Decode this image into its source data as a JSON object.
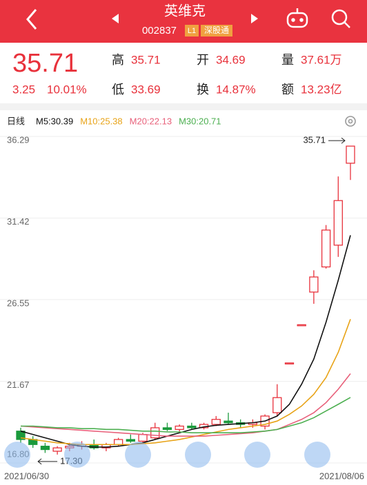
{
  "header": {
    "title": "英维克",
    "code": "002837",
    "level": "L1",
    "tag": "深股通"
  },
  "quote": {
    "price": "35.71",
    "change": "3.25",
    "change_pct": "10.01%",
    "stats": [
      [
        {
          "label": "高",
          "value": "35.71"
        },
        {
          "label": "开",
          "value": "34.69"
        },
        {
          "label": "量",
          "value": "37.61万"
        }
      ],
      [
        {
          "label": "低",
          "value": "33.69"
        },
        {
          "label": "换",
          "value": "14.87%"
        },
        {
          "label": "额",
          "value": "13.23亿"
        }
      ]
    ]
  },
  "chart_data": {
    "type": "candlestick",
    "period": "日线",
    "categories": [
      "2021/06/30",
      null,
      null,
      null,
      null,
      null,
      null,
      null,
      null,
      null,
      null,
      null,
      null,
      null,
      null,
      null,
      null,
      null,
      null,
      null,
      null,
      null,
      null,
      null,
      null,
      null,
      null,
      "2021/08/06"
    ],
    "open": [
      18.7,
      18.2,
      17.8,
      17.5,
      17.7,
      17.8,
      17.9,
      17.7,
      17.9,
      18.2,
      18.1,
      18.3,
      18.9,
      18.8,
      19.0,
      18.9,
      19.1,
      19.3,
      19.2,
      19.1,
      19.0,
      19.8,
      22.77,
      25.05,
      27.0,
      28.5,
      29.8,
      34.69
    ],
    "high": [
      18.9,
      18.4,
      18.0,
      17.8,
      18.0,
      18.1,
      18.2,
      18.0,
      18.3,
      18.5,
      18.6,
      19.2,
      19.2,
      19.1,
      19.2,
      19.2,
      19.6,
      19.8,
      19.4,
      19.4,
      19.7,
      21.5,
      22.77,
      25.05,
      28.3,
      31.0,
      33.9,
      35.71
    ],
    "low": [
      18.0,
      17.7,
      17.4,
      17.3,
      17.5,
      17.6,
      17.6,
      17.5,
      17.8,
      18.0,
      18.0,
      18.2,
      18.7,
      18.6,
      18.8,
      18.8,
      19.0,
      19.1,
      18.9,
      18.9,
      18.8,
      19.6,
      22.77,
      25.05,
      26.3,
      28.4,
      29.1,
      33.69
    ],
    "close": [
      18.2,
      17.9,
      17.6,
      17.7,
      17.8,
      17.9,
      17.7,
      17.9,
      18.2,
      18.1,
      18.5,
      18.9,
      18.8,
      19.0,
      18.9,
      19.1,
      19.4,
      19.2,
      19.1,
      19.2,
      19.6,
      20.7,
      22.77,
      25.05,
      27.9,
      30.7,
      32.46,
      35.71
    ],
    "up_color": "#e8313b",
    "down_color": "#1b9a3c",
    "series": [
      {
        "name": "M5:30.39",
        "color": "#111111",
        "values": [
          18.7,
          18.5,
          18.3,
          18.1,
          17.9,
          17.8,
          17.75,
          17.75,
          17.8,
          17.9,
          18.0,
          18.2,
          18.4,
          18.6,
          18.8,
          18.95,
          19.05,
          19.1,
          19.15,
          19.2,
          19.3,
          19.6,
          20.3,
          21.5,
          23.0,
          25.2,
          27.7,
          30.39
        ]
      },
      {
        "name": "M10:25.38",
        "color": "#e8a317",
        "values": [
          18.3,
          18.2,
          18.1,
          18.0,
          17.95,
          17.9,
          17.9,
          17.9,
          17.9,
          17.9,
          17.95,
          18.0,
          18.1,
          18.2,
          18.35,
          18.5,
          18.65,
          18.8,
          18.9,
          19.0,
          19.1,
          19.3,
          19.7,
          20.2,
          20.9,
          21.9,
          23.4,
          25.38
        ]
      },
      {
        "name": "M20:22.13",
        "color": "#e8607a",
        "values": [
          19.0,
          18.95,
          18.9,
          18.85,
          18.8,
          18.75,
          18.7,
          18.65,
          18.6,
          18.55,
          18.5,
          18.45,
          18.4,
          18.4,
          18.4,
          18.4,
          18.45,
          18.5,
          18.55,
          18.6,
          18.7,
          18.8,
          19.1,
          19.4,
          19.8,
          20.4,
          21.2,
          22.13
        ]
      },
      {
        "name": "M30:20.71",
        "color": "#4caf50",
        "values": [
          19.0,
          19.0,
          18.95,
          18.9,
          18.9,
          18.85,
          18.85,
          18.8,
          18.8,
          18.75,
          18.7,
          18.7,
          18.65,
          18.65,
          18.6,
          18.6,
          18.6,
          18.6,
          18.6,
          18.65,
          18.7,
          18.8,
          19.0,
          19.2,
          19.5,
          19.9,
          20.3,
          20.71
        ]
      }
    ],
    "ylim": [
      16.8,
      36.29
    ],
    "yticks": [
      36.29,
      31.42,
      26.55,
      21.67,
      {
        "value": 16.8,
        "label": "16.80"
      }
    ],
    "grid": true,
    "max_mark": 35.71,
    "min_mark": {
      "value": 17.3,
      "label": "17.30"
    }
  }
}
